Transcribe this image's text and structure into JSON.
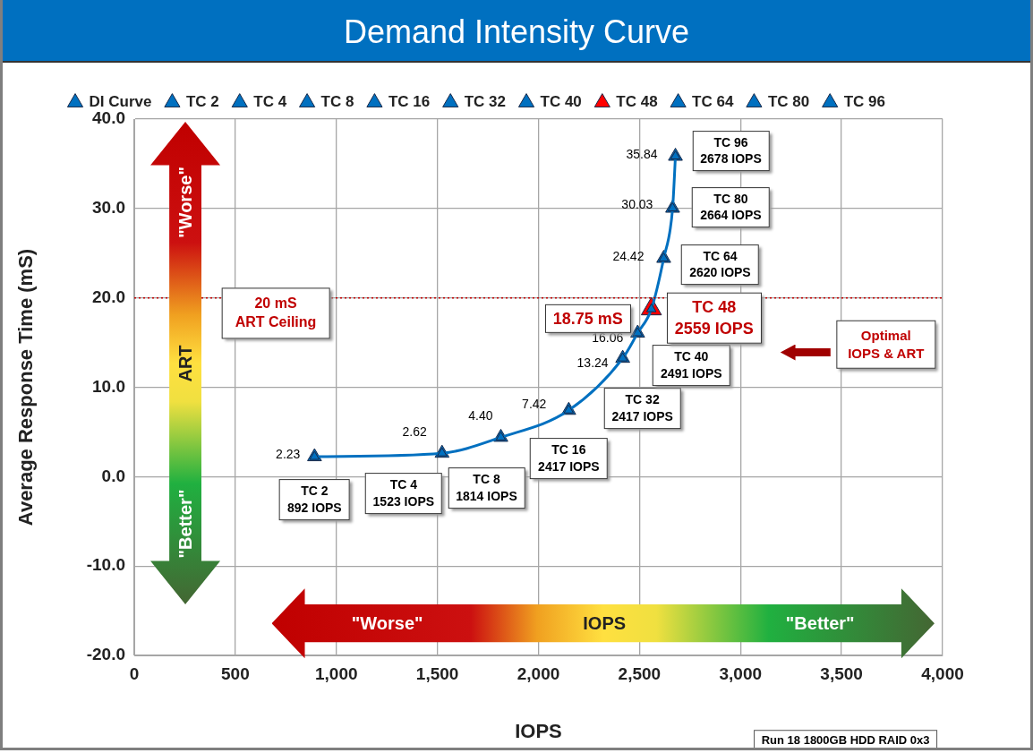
{
  "chart_data": {
    "type": "scatter",
    "title": "Demand Intensity Curve",
    "xlabel": "IOPS",
    "ylabel": "Average Response Time (mS)",
    "xlim": [
      0,
      4000
    ],
    "ylim": [
      -20,
      40
    ],
    "xticks": [
      {
        "value": 0,
        "label": "0"
      },
      {
        "value": 500,
        "label": "500"
      },
      {
        "value": 1000,
        "label": "1,000"
      },
      {
        "value": 1500,
        "label": "1,500"
      },
      {
        "value": 2000,
        "label": "2,000"
      },
      {
        "value": 2500,
        "label": "2,500"
      },
      {
        "value": 3000,
        "label": "3,000"
      },
      {
        "value": 3500,
        "label": "3,500"
      },
      {
        "value": 4000,
        "label": "4,000"
      }
    ],
    "yticks": [
      {
        "value": -20,
        "label": "-20.0"
      },
      {
        "value": -10,
        "label": "-10.0"
      },
      {
        "value": 0,
        "label": "0.0"
      },
      {
        "value": 10,
        "label": "10.0"
      },
      {
        "value": 20,
        "label": "20.0"
      },
      {
        "value": 30,
        "label": "30.0"
      },
      {
        "value": 40,
        "label": "40.0"
      }
    ],
    "grid": true,
    "legend": "top",
    "marker": "triangle",
    "series": [
      {
        "name": "DI Curve",
        "type": "line",
        "color": "#0070c0",
        "x": [
          892,
          1523,
          1814,
          2150,
          2417,
          2491,
          2559,
          2620,
          2664,
          2678
        ],
        "values": [
          2.23,
          2.62,
          4.4,
          7.42,
          13.24,
          16.06,
          18.75,
          24.42,
          30.03,
          35.84
        ],
        "value_labels": [
          "2.23",
          "2.62",
          "4.40",
          "7.42",
          "13.24",
          "16.06",
          null,
          "24.42",
          "30.03",
          "35.84"
        ]
      },
      {
        "name": "TC 2",
        "color": "#0070c0",
        "x": [
          892
        ],
        "values": [
          2.23
        ]
      },
      {
        "name": "TC 4",
        "color": "#0070c0",
        "x": [
          1523
        ],
        "values": [
          2.62
        ]
      },
      {
        "name": "TC 8",
        "color": "#0070c0",
        "x": [
          1814
        ],
        "values": [
          4.4
        ]
      },
      {
        "name": "TC 16",
        "color": "#0070c0",
        "x": [
          2150
        ],
        "values": [
          7.42
        ]
      },
      {
        "name": "TC 32",
        "color": "#0070c0",
        "x": [
          2417
        ],
        "values": [
          13.24
        ]
      },
      {
        "name": "TC 40",
        "color": "#0070c0",
        "x": [
          2491
        ],
        "values": [
          16.06
        ]
      },
      {
        "name": "TC 48",
        "color": "#ff0000",
        "x": [
          2559
        ],
        "values": [
          18.75
        ]
      },
      {
        "name": "TC 64",
        "color": "#0070c0",
        "x": [
          2620
        ],
        "values": [
          24.42
        ]
      },
      {
        "name": "TC 80",
        "color": "#0070c0",
        "x": [
          2664
        ],
        "values": [
          30.03
        ]
      },
      {
        "name": "TC 96",
        "color": "#0070c0",
        "x": [
          2678
        ],
        "values": [
          35.84
        ]
      }
    ],
    "ref_lines": [
      {
        "axis": "y",
        "value": 20,
        "label": "20 mS\nART Ceiling",
        "color": "#c00000",
        "line_style": "dotted"
      }
    ],
    "annotations": [
      "\"Worse\"",
      "ART",
      "\"Better\"",
      "\"Worse\"",
      "IOPS",
      "\"Better\"",
      "Optimal\nIOPS & ART",
      "Run 18 1800GB HDD RAID 0x3",
      {
        "text": "TC 2\n892 IOPS",
        "x": 892,
        "y": 2.23
      },
      {
        "text": "TC 4\n1523 IOPS",
        "x": 1523,
        "y": 2.62
      },
      {
        "text": "TC 8\n1814 IOPS",
        "x": 1814,
        "y": 4.4
      },
      {
        "text": "TC 16\n2417 IOPS",
        "x": 2150,
        "y": 7.42
      },
      {
        "text": "TC 32\n2417 IOPS",
        "x": 2417,
        "y": 13.24
      },
      {
        "text": "TC 40\n2491 IOPS",
        "x": 2491,
        "y": 16.06
      },
      {
        "text": "TC 48\n2559 IOPS",
        "x": 2559,
        "y": 18.75
      },
      {
        "text": "18.75 mS",
        "x": 2559,
        "y": 18.75
      },
      {
        "text": "TC 64\n2620 IOPS",
        "x": 2620,
        "y": 24.42
      },
      {
        "text": "TC 80\n2664 IOPS",
        "x": 2664,
        "y": 30.03
      },
      {
        "text": "TC 96\n2678 IOPS",
        "x": 2678,
        "y": 35.84
      }
    ]
  }
}
